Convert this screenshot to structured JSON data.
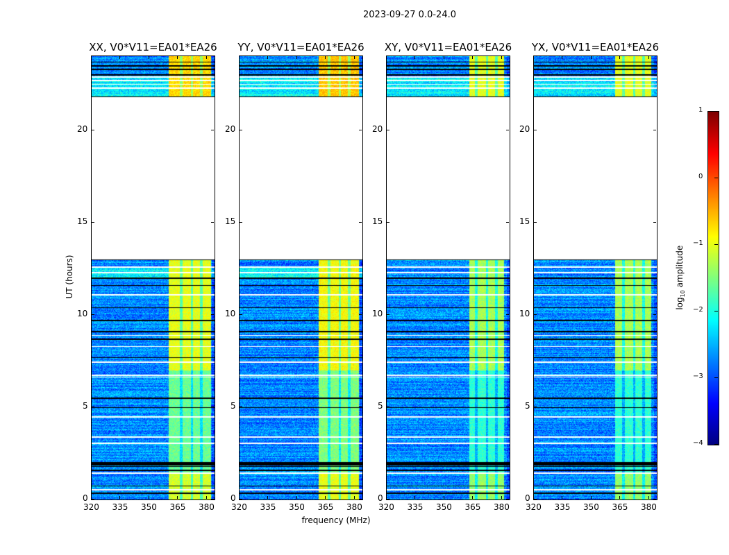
{
  "chart_data": {
    "type": "heatmap",
    "title": "2023-09-27 0.0-24.0",
    "xlabel": "frequency (MHz)",
    "ylabel": "UT (hours)",
    "xlim": [
      320,
      384
    ],
    "ylim": [
      0,
      24
    ],
    "xticks": [
      320,
      335,
      350,
      365,
      380
    ],
    "yticks": [
      0,
      5,
      10,
      15,
      20
    ],
    "colormap": "jet",
    "colorbar": {
      "label_prefix": "log",
      "label_sub": "10",
      "label_suffix": " amplitude",
      "range": [
        -4,
        1
      ],
      "ticks": [
        1,
        0,
        -1,
        -2,
        -3,
        -4
      ]
    },
    "data_segments_hours": [
      [
        0,
        13.0
      ],
      [
        21.8,
        24
      ]
    ],
    "white_gap_rows_hours": [
      0.55,
      1.45,
      3.05,
      3.4,
      4.5,
      6.65,
      6.75,
      7.45,
      8.3,
      8.9,
      11.1,
      12.3,
      12.6,
      22.3,
      22.5,
      22.7,
      22.9
    ],
    "flagged_black_rows_hours": [
      0.35,
      0.75,
      1.6,
      1.8,
      1.9,
      2.0,
      5.0,
      5.5,
      7.7,
      8.7,
      9.1,
      9.7,
      10.4,
      11.6,
      12.0,
      23.0,
      23.3,
      23.5,
      23.7
    ],
    "background_log_amp": -2.7,
    "panels": [
      {
        "title": "XX, V0*V11=EA01*EA26",
        "rfi_band_mhz": [
          360,
          382
        ],
        "rfi_log_amp": -1.0
      },
      {
        "title": "YY, V0*V11=EA01*EA26",
        "rfi_band_mhz": [
          361,
          382
        ],
        "rfi_log_amp": -0.9
      },
      {
        "title": "XY, V0*V11=EA01*EA26",
        "rfi_band_mhz": [
          363,
          381
        ],
        "rfi_log_amp": -1.3
      },
      {
        "title": "YX, V0*V11=EA01*EA26",
        "rfi_band_mhz": [
          362,
          381
        ],
        "rfi_log_amp": -1.3
      }
    ]
  }
}
